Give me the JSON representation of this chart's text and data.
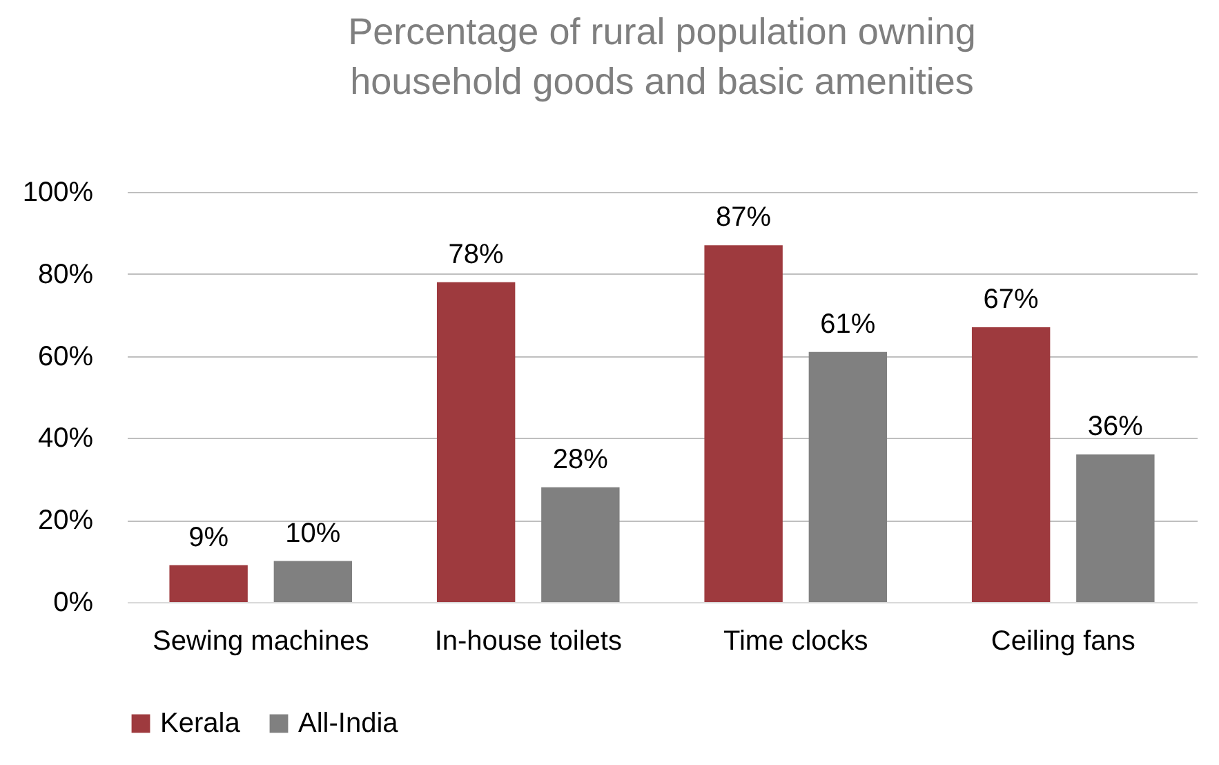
{
  "chart_data": {
    "type": "bar",
    "title": "Percentage of rural population owning household goods and basic amenities",
    "categories": [
      "Sewing machines",
      "In-house toilets",
      "Time clocks",
      "Ceiling fans"
    ],
    "series": [
      {
        "name": "Kerala",
        "color": "#9e3a3e",
        "values": [
          9,
          78,
          87,
          67
        ],
        "value_labels": [
          "9%",
          "78%",
          "87%",
          "67%"
        ]
      },
      {
        "name": "All-India",
        "color": "#808080",
        "values": [
          10,
          28,
          61,
          36
        ],
        "value_labels": [
          "10%",
          "28%",
          "61%",
          "36%"
        ]
      }
    ],
    "ylim": [
      0,
      100
    ],
    "yticks": [
      {
        "value": 0,
        "label": "0%"
      },
      {
        "value": 20,
        "label": "20%"
      },
      {
        "value": 40,
        "label": "40%"
      },
      {
        "value": 60,
        "label": "60%"
      },
      {
        "value": 80,
        "label": "80%"
      },
      {
        "value": 100,
        "label": "100%"
      }
    ],
    "grid": "y",
    "legend": "bottom"
  }
}
